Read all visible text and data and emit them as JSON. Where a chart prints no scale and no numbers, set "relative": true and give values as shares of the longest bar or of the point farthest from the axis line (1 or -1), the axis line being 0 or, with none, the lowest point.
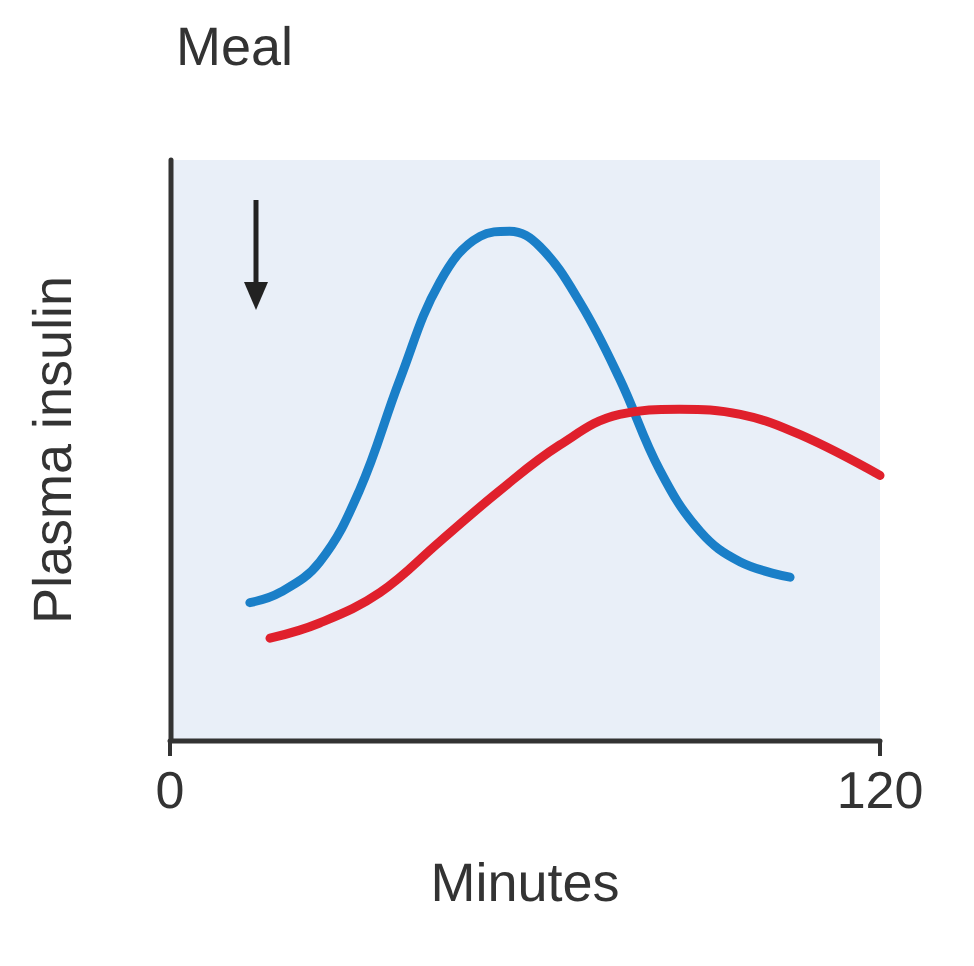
{
  "chart_data": {
    "type": "line",
    "xlabel": "Minutes",
    "ylabel": "Plasma insulin",
    "relative": true,
    "xlim": [
      0,
      120
    ],
    "xticks": [
      0,
      120
    ],
    "marker": "none",
    "line_style": "solid",
    "grid": false,
    "annotations": [
      "Meal"
    ],
    "series": [
      {
        "color": "#1a7fc8",
        "x": [
          13.5,
          18.6,
          25.3,
          32,
          38.9,
          45.6,
          52.4,
          57.4,
          62.5,
          69.3,
          76,
          82.8,
          89.6,
          96.4,
          104.8
        ],
        "values": [
          0.27,
          0.29,
          0.35,
          0.49,
          0.71,
          0.9,
          0.99,
          1,
          0.97,
          0.86,
          0.71,
          0.53,
          0.41,
          0.35,
          0.32
        ]
      },
      {
        "color": "#e0202c",
        "x": [
          16.9,
          25.3,
          35.5,
          45.6,
          55.7,
          65.9,
          76,
          86.1,
          96.4,
          106.5,
          120
        ],
        "values": [
          0.2,
          0.23,
          0.29,
          0.39,
          0.49,
          0.58,
          0.64,
          0.65,
          0.64,
          0.6,
          0.52
        ]
      }
    ]
  }
}
